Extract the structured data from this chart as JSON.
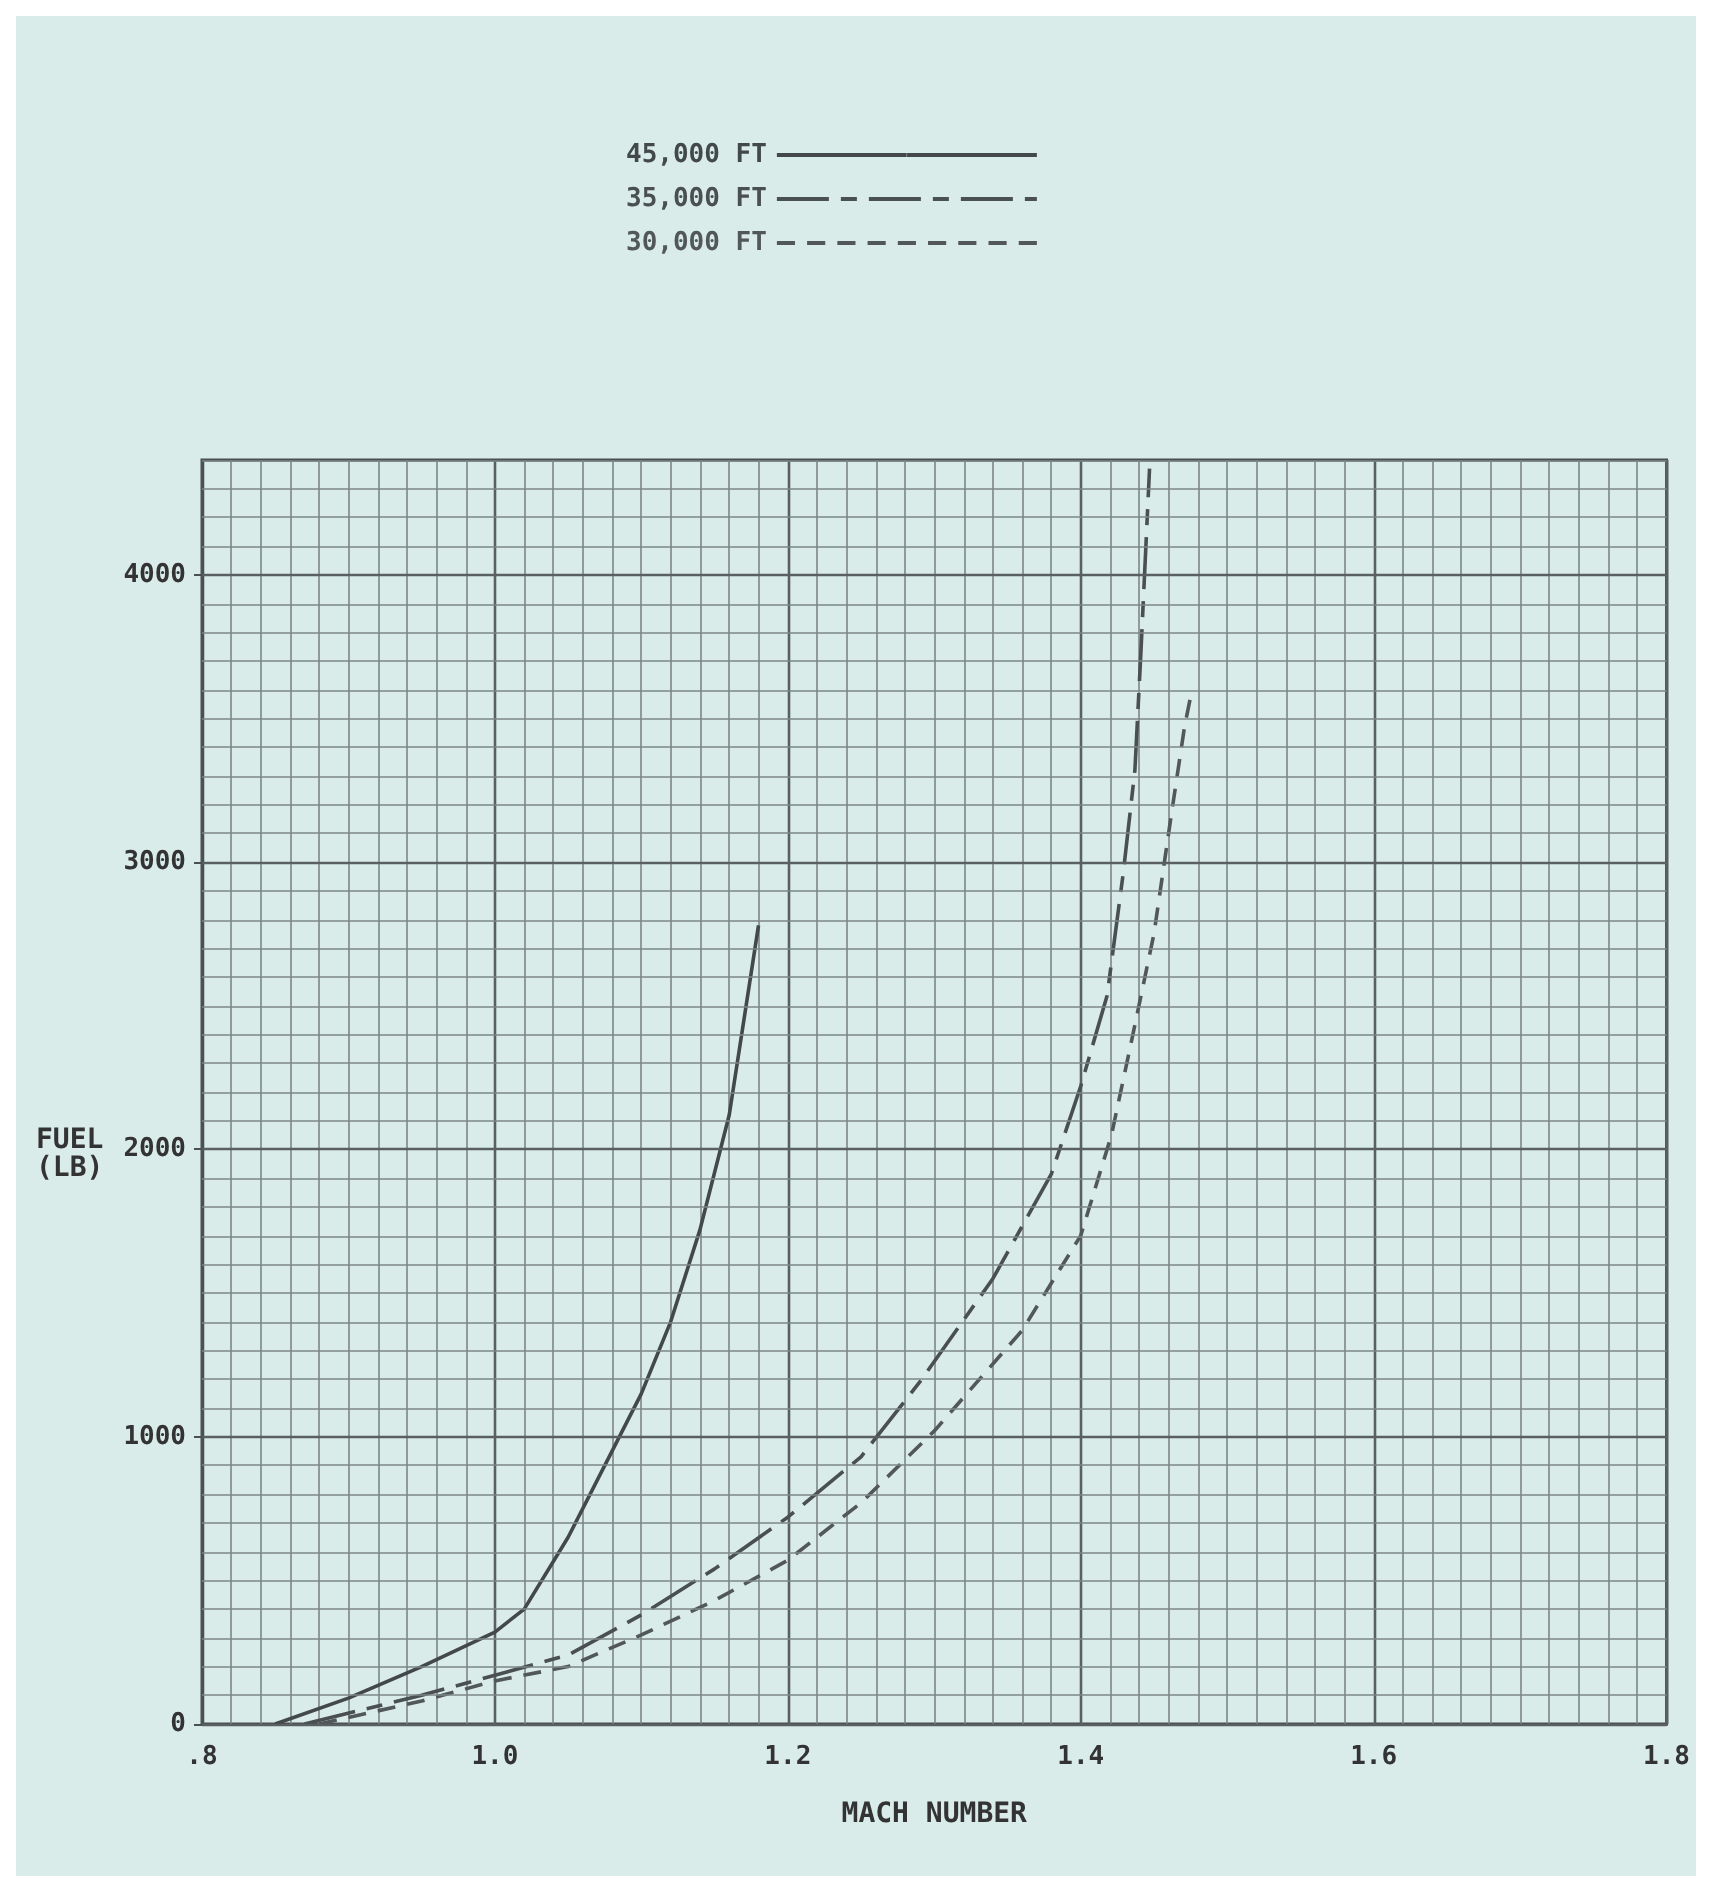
{
  "chart_data": {
    "type": "line",
    "xlabel": "MACH NUMBER",
    "ylabel": "FUEL\n(LB)",
    "xlim": [
      0.8,
      1.8
    ],
    "ylim": [
      0,
      4400
    ],
    "xticks": [
      {
        "value": 0.8,
        "label": ".8"
      },
      {
        "value": 1.0,
        "label": "1.0"
      },
      {
        "value": 1.2,
        "label": "1.2"
      },
      {
        "value": 1.4,
        "label": "1.4"
      },
      {
        "value": 1.6,
        "label": "1.6"
      },
      {
        "value": 1.8,
        "label": "1.8"
      }
    ],
    "yticks": [
      0,
      1000,
      2000,
      3000,
      4000
    ],
    "grid": true,
    "legend": "top",
    "marker": "none",
    "series": [
      {
        "name": "45,000 FT",
        "color": "#43484a",
        "line_style": "solid",
        "x": [
          0.85,
          0.9,
          0.95,
          1.0,
          1.02,
          1.05,
          1.08,
          1.1,
          1.12,
          1.14,
          1.16,
          1.18
        ],
        "values": [
          0,
          90,
          200,
          320,
          400,
          650,
          950,
          1150,
          1400,
          1720,
          2120,
          2780
        ]
      },
      {
        "name": "35,000 FT",
        "color": "#4a4f50",
        "line_style": "dashdot",
        "x": [
          0.87,
          0.95,
          1.0,
          1.05,
          1.1,
          1.15,
          1.2,
          1.25,
          1.29,
          1.34,
          1.38,
          1.4,
          1.418,
          1.429,
          1.437,
          1.441,
          1.447
        ],
        "values": [
          0,
          100,
          170,
          240,
          380,
          540,
          720,
          930,
          1190,
          1550,
          1915,
          2220,
          2535,
          2960,
          3320,
          3720,
          4370
        ]
      },
      {
        "name": "30,000 FT",
        "color": "#525758",
        "line_style": "dashed",
        "x": [
          0.88,
          0.95,
          1.0,
          1.05,
          1.1,
          1.15,
          1.2,
          1.25,
          1.3,
          1.36,
          1.4,
          1.421,
          1.435,
          1.45,
          1.462,
          1.471,
          1.476
        ],
        "values": [
          0,
          80,
          150,
          200,
          310,
          430,
          570,
          770,
          1020,
          1370,
          1700,
          2050,
          2385,
          2750,
          3170,
          3475,
          3600
        ]
      }
    ]
  }
}
